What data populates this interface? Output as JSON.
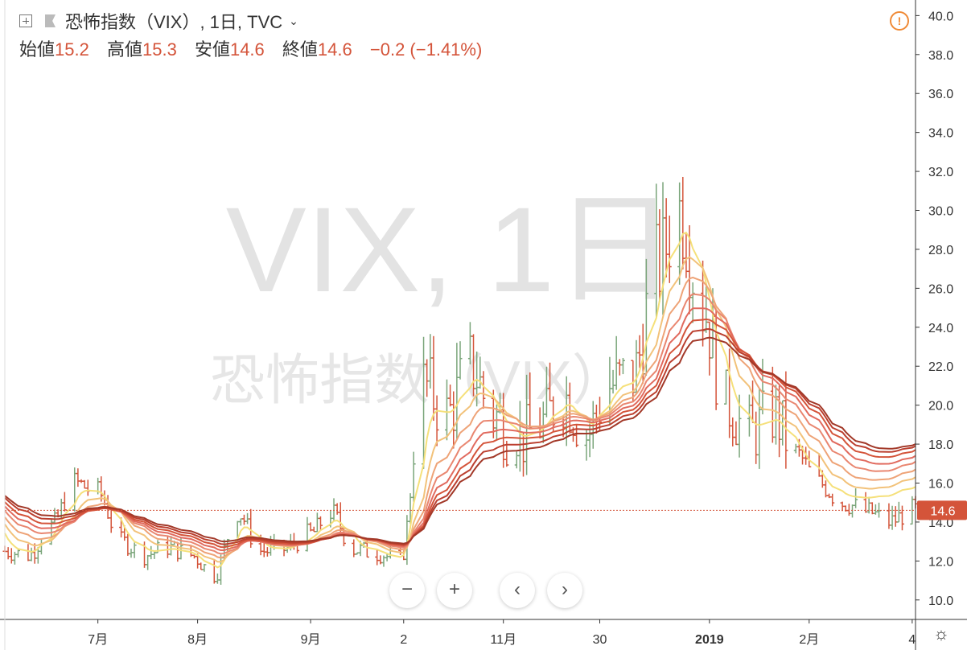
{
  "header": {
    "title": "恐怖指数（VIX）, 1日, TVC",
    "ohlc": [
      {
        "label": "始値",
        "value": "15.2"
      },
      {
        "label": "高値",
        "value": "15.3"
      },
      {
        "label": "安値",
        "value": "14.6"
      },
      {
        "label": "終値",
        "value": "14.6"
      }
    ],
    "change": "−0.2 (−1.41%)"
  },
  "watermark": {
    "line1": "VIX, 1日",
    "line2": "恐怖指数（VIX）"
  },
  "price_label": "14.6",
  "controls": {
    "zoom_out": "−",
    "zoom_in": "+",
    "prev": "‹",
    "next": "›"
  },
  "icons": {
    "expand": "plus-square-icon",
    "flag": "flag-icon",
    "dropdown": "chevron-down-icon",
    "warning": "exclamation-circle-icon",
    "settings": "gear-icon"
  },
  "colors": {
    "up": "#7aa57a",
    "down": "#d4543a",
    "price_line": "#d4543a",
    "ribbon": [
      "#f5e07a",
      "#f2c27a",
      "#eea377",
      "#e98670",
      "#e16a5e",
      "#d4543a",
      "#bb3f2f",
      "#a23828"
    ]
  },
  "chart_data": {
    "type": "ohlc",
    "title": "恐怖指数（VIX）, 1日, TVC",
    "ylim": [
      9.0,
      40.8
    ],
    "y_ticks": [
      "10.0",
      "12.0",
      "14.0",
      "16.0",
      "18.0",
      "20.0",
      "22.0",
      "24.0",
      "26.0",
      "28.0",
      "30.0",
      "32.0",
      "34.0",
      "36.0",
      "38.0",
      "40.0"
    ],
    "x_range": [
      "2018-06-04",
      "2019-03-05"
    ],
    "x_ticks": [
      {
        "label": "7月",
        "date": "2018-07-02"
      },
      {
        "label": "8月",
        "date": "2018-08-01"
      },
      {
        "label": "9月",
        "date": "2018-09-04"
      },
      {
        "label": "2",
        "date": "2018-10-02"
      },
      {
        "label": "11月",
        "date": "2018-11-01"
      },
      {
        "label": "30",
        "date": "2018-11-30"
      },
      {
        "label": "2019",
        "date": "2019-01-02"
      },
      {
        "label": "2月",
        "date": "2019-02-01"
      },
      {
        "label": "4",
        "date": "2019-03-04"
      }
    ],
    "last_close": 14.6,
    "closes": [
      {
        "date": "2018-06-04",
        "close": 12.5
      },
      {
        "date": "2018-06-11",
        "close": 12.3
      },
      {
        "date": "2018-06-18",
        "close": 13.8
      },
      {
        "date": "2018-06-25",
        "close": 16.0
      },
      {
        "date": "2018-07-02",
        "close": 15.5
      },
      {
        "date": "2018-07-09",
        "close": 13.0
      },
      {
        "date": "2018-07-16",
        "close": 12.3
      },
      {
        "date": "2018-07-23",
        "close": 12.7
      },
      {
        "date": "2018-07-30",
        "close": 12.3
      },
      {
        "date": "2018-08-06",
        "close": 11.3
      },
      {
        "date": "2018-08-13",
        "close": 14.5
      },
      {
        "date": "2018-08-20",
        "close": 12.5
      },
      {
        "date": "2018-08-27",
        "close": 12.6
      },
      {
        "date": "2018-09-04",
        "close": 13.4
      },
      {
        "date": "2018-09-10",
        "close": 14.5
      },
      {
        "date": "2018-09-17",
        "close": 12.6
      },
      {
        "date": "2018-09-24",
        "close": 12.4
      },
      {
        "date": "2018-10-01",
        "close": 12.0
      },
      {
        "date": "2018-10-08",
        "close": 21.0
      },
      {
        "date": "2018-10-15",
        "close": 19.5
      },
      {
        "date": "2018-10-22",
        "close": 22.0
      },
      {
        "date": "2018-10-29",
        "close": 19.5
      },
      {
        "date": "2018-11-05",
        "close": 18.0
      },
      {
        "date": "2018-11-12",
        "close": 19.0
      },
      {
        "date": "2018-11-19",
        "close": 20.5
      },
      {
        "date": "2018-11-26",
        "close": 18.5
      },
      {
        "date": "2018-12-03",
        "close": 21.0
      },
      {
        "date": "2018-12-10",
        "close": 21.5
      },
      {
        "date": "2018-12-17",
        "close": 27.0
      },
      {
        "date": "2018-12-24",
        "close": 30.0
      },
      {
        "date": "2018-12-31",
        "close": 25.0
      },
      {
        "date": "2019-01-07",
        "close": 20.0
      },
      {
        "date": "2019-01-14",
        "close": 18.5
      },
      {
        "date": "2019-01-21",
        "close": 19.5
      },
      {
        "date": "2019-01-28",
        "close": 17.5
      },
      {
        "date": "2019-02-04",
        "close": 16.0
      },
      {
        "date": "2019-02-11",
        "close": 15.0
      },
      {
        "date": "2019-02-19",
        "close": 14.5
      },
      {
        "date": "2019-02-25",
        "close": 14.0
      },
      {
        "date": "2019-03-04",
        "close": 14.6
      }
    ],
    "ma_ribbon_start": [
      {
        "date": "2018-06-04",
        "values": [
          13.9,
          14.2,
          14.5,
          14.8,
          15.0,
          15.2,
          15.4,
          15.5
        ]
      }
    ],
    "ma_ribbon_end": [
      {
        "date": "2019-03-04",
        "values": [
          15.8,
          16.3,
          16.7,
          17.1,
          17.4,
          17.7,
          17.9,
          18.0
        ]
      }
    ]
  }
}
